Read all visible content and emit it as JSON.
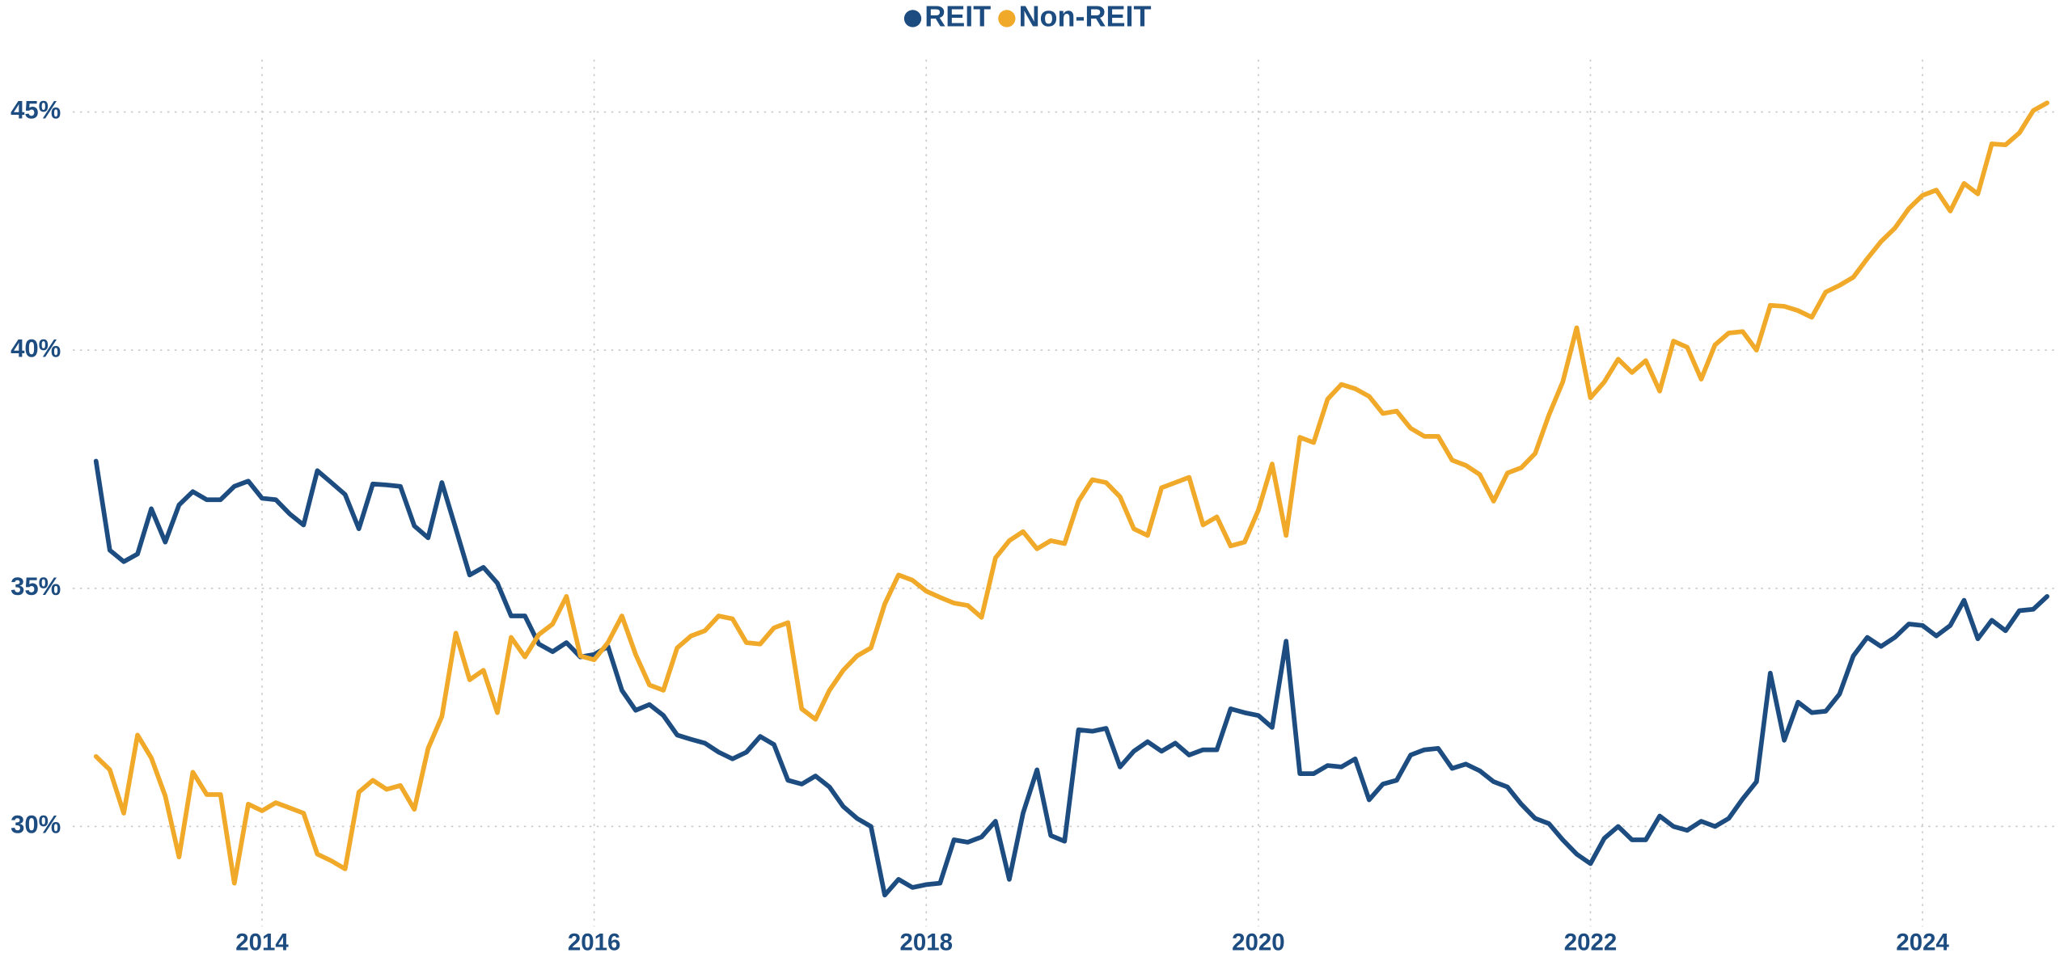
{
  "chart_data": {
    "type": "line",
    "x": [
      2013.0,
      2013.083,
      2013.167,
      2013.25,
      2013.333,
      2013.417,
      2013.5,
      2013.583,
      2013.667,
      2013.75,
      2013.833,
      2013.917,
      2014.0,
      2014.083,
      2014.167,
      2014.25,
      2014.333,
      2014.417,
      2014.5,
      2014.583,
      2014.667,
      2014.75,
      2014.833,
      2014.917,
      2015.0,
      2015.083,
      2015.167,
      2015.25,
      2015.333,
      2015.417,
      2015.5,
      2015.583,
      2015.667,
      2015.75,
      2015.833,
      2015.917,
      2016.0,
      2016.083,
      2016.167,
      2016.25,
      2016.333,
      2016.417,
      2016.5,
      2016.583,
      2016.667,
      2016.75,
      2016.833,
      2016.917,
      2017.0,
      2017.083,
      2017.167,
      2017.25,
      2017.333,
      2017.417,
      2017.5,
      2017.583,
      2017.667,
      2017.75,
      2017.833,
      2017.917,
      2018.0,
      2018.083,
      2018.167,
      2018.25,
      2018.333,
      2018.417,
      2018.5,
      2018.583,
      2018.667,
      2018.75,
      2018.833,
      2018.917,
      2019.0,
      2019.083,
      2019.167,
      2019.25,
      2019.333,
      2019.417,
      2019.5,
      2019.583,
      2019.667,
      2019.75,
      2019.833,
      2019.917,
      2020.0,
      2020.083,
      2020.167,
      2020.25,
      2020.333,
      2020.417,
      2020.5,
      2020.583,
      2020.667,
      2020.75,
      2020.833,
      2020.917,
      2021.0,
      2021.083,
      2021.167,
      2021.25,
      2021.333,
      2021.417,
      2021.5,
      2021.583,
      2021.667,
      2021.75,
      2021.833,
      2021.917,
      2022.0,
      2022.083,
      2022.167,
      2022.25,
      2022.333,
      2022.417,
      2022.5,
      2022.583,
      2022.667,
      2022.75,
      2022.833,
      2022.917,
      2023.0,
      2023.083,
      2023.167,
      2023.25,
      2023.333,
      2023.417,
      2023.5,
      2023.583,
      2023.667,
      2023.75,
      2023.833,
      2023.917,
      2024.0,
      2024.083,
      2024.167,
      2024.25,
      2024.333,
      2024.417,
      2024.5,
      2024.583,
      2024.667,
      2024.75
    ],
    "series": [
      {
        "name": "REIT",
        "color": "#1d4c80",
        "values": [
          37.67,
          35.8,
          35.56,
          35.72,
          36.67,
          35.97,
          36.75,
          37.03,
          36.86,
          36.86,
          37.14,
          37.25,
          36.89,
          36.86,
          36.56,
          36.33,
          37.47,
          37.22,
          36.97,
          36.25,
          37.19,
          37.17,
          37.14,
          36.31,
          36.06,
          37.22,
          36.25,
          35.28,
          35.44,
          35.11,
          34.42,
          34.42,
          33.83,
          33.67,
          33.86,
          33.56,
          33.61,
          33.78,
          32.86,
          32.44,
          32.56,
          32.33,
          31.92,
          31.83,
          31.75,
          31.56,
          31.42,
          31.56,
          31.89,
          31.72,
          30.97,
          30.89,
          31.06,
          30.83,
          30.42,
          30.17,
          30.0,
          28.56,
          28.89,
          28.72,
          28.78,
          28.81,
          29.72,
          29.67,
          29.78,
          30.11,
          28.89,
          30.28,
          31.19,
          29.81,
          29.69,
          32.03,
          32.0,
          32.06,
          31.25,
          31.58,
          31.78,
          31.58,
          31.75,
          31.5,
          31.61,
          31.61,
          32.47,
          32.39,
          32.33,
          32.08,
          33.89,
          31.11,
          31.11,
          31.28,
          31.25,
          31.42,
          30.56,
          30.89,
          30.97,
          31.5,
          31.61,
          31.64,
          31.22,
          31.31,
          31.17,
          30.94,
          30.83,
          30.47,
          30.17,
          30.06,
          29.72,
          29.42,
          29.22,
          29.75,
          30.0,
          29.72,
          29.72,
          30.22,
          30.0,
          29.92,
          30.11,
          30.0,
          30.17,
          30.58,
          30.94,
          33.22,
          31.81,
          32.61,
          32.39,
          32.42,
          32.78,
          33.58,
          33.97,
          33.78,
          33.97,
          34.25,
          34.22,
          34.0,
          34.22,
          34.75,
          33.94,
          34.33,
          34.11,
          34.53,
          34.56,
          34.83
        ]
      },
      {
        "name": "Non-REIT",
        "color": "#f0a928",
        "values": [
          31.47,
          31.19,
          30.28,
          31.92,
          31.44,
          30.64,
          29.36,
          31.14,
          30.67,
          30.67,
          28.81,
          30.47,
          30.33,
          30.5,
          30.39,
          30.28,
          29.42,
          29.28,
          29.11,
          30.72,
          30.97,
          30.78,
          30.86,
          30.36,
          31.64,
          32.31,
          34.06,
          33.08,
          33.28,
          32.39,
          33.97,
          33.56,
          34.03,
          34.25,
          34.83,
          33.58,
          33.5,
          33.86,
          34.42,
          33.61,
          32.97,
          32.86,
          33.75,
          34.0,
          34.11,
          34.42,
          34.36,
          33.86,
          33.83,
          34.17,
          34.28,
          32.47,
          32.25,
          32.86,
          33.28,
          33.58,
          33.75,
          34.67,
          35.28,
          35.17,
          34.94,
          34.81,
          34.69,
          34.64,
          34.39,
          35.64,
          36.0,
          36.19,
          35.83,
          36.0,
          35.94,
          36.83,
          37.28,
          37.22,
          36.92,
          36.25,
          36.11,
          37.11,
          37.22,
          37.33,
          36.33,
          36.5,
          35.89,
          35.97,
          36.64,
          37.61,
          36.11,
          38.17,
          38.06,
          38.97,
          39.28,
          39.19,
          39.03,
          38.67,
          38.72,
          38.36,
          38.19,
          38.19,
          37.69,
          37.58,
          37.39,
          36.83,
          37.42,
          37.53,
          37.83,
          38.64,
          39.33,
          40.47,
          39.0,
          39.33,
          39.81,
          39.53,
          39.78,
          39.14,
          40.19,
          40.06,
          39.39,
          40.11,
          40.36,
          40.39,
          40.0,
          40.94,
          40.92,
          40.83,
          40.69,
          41.22,
          41.36,
          41.53,
          41.92,
          42.28,
          42.56,
          42.97,
          43.25,
          43.36,
          42.92,
          43.5,
          43.28,
          44.33,
          44.31,
          44.56,
          45.03,
          45.19
        ]
      }
    ],
    "xlim": [
      2012.86,
      2024.82
    ],
    "xticks": [
      2014,
      2016,
      2018,
      2020,
      2022,
      2024
    ],
    "ylim": [
      27.9,
      46.1
    ],
    "yticks": [
      {
        "value": 30,
        "label": "30%"
      },
      {
        "value": 35,
        "label": "35%"
      },
      {
        "value": 40,
        "label": "40%"
      },
      {
        "value": 45,
        "label": "45%"
      }
    ],
    "grid": true,
    "legend": "top"
  }
}
